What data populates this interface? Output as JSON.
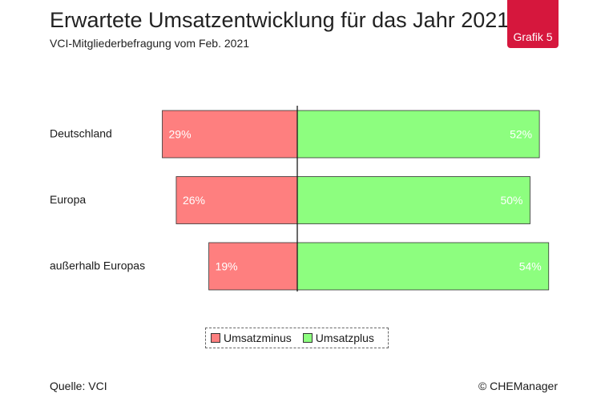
{
  "header": {
    "title": "Erwartete Umsatzentwicklung für das Jahr 2021",
    "subtitle": "VCI-Mitgliederbefragung vom Feb. 2021",
    "badge": "Grafik 5"
  },
  "colors": {
    "minus": "#fe7f7f",
    "plus": "#8dfe7f",
    "badge": "#d6173d"
  },
  "chart_data": {
    "type": "bar",
    "orientation": "horizontal-diverging",
    "categories": [
      "Deutschland",
      "Europa",
      "außerhalb Europas"
    ],
    "series": [
      {
        "name": "Umsatzminus",
        "values": [
          29,
          26,
          19
        ],
        "labels": [
          "29%",
          "26%",
          "19%"
        ]
      },
      {
        "name": "Umsatzplus",
        "values": [
          52,
          50,
          54
        ],
        "labels": [
          "52%",
          "50%",
          "54%"
        ]
      }
    ],
    "unit": "%",
    "legend": "bottom-center",
    "grid": false
  },
  "legend": {
    "minus_label": "Umsatzminus",
    "plus_label": "Umsatzplus"
  },
  "footer": {
    "source": "Quelle: VCI",
    "copyright": "© CHEManager"
  }
}
